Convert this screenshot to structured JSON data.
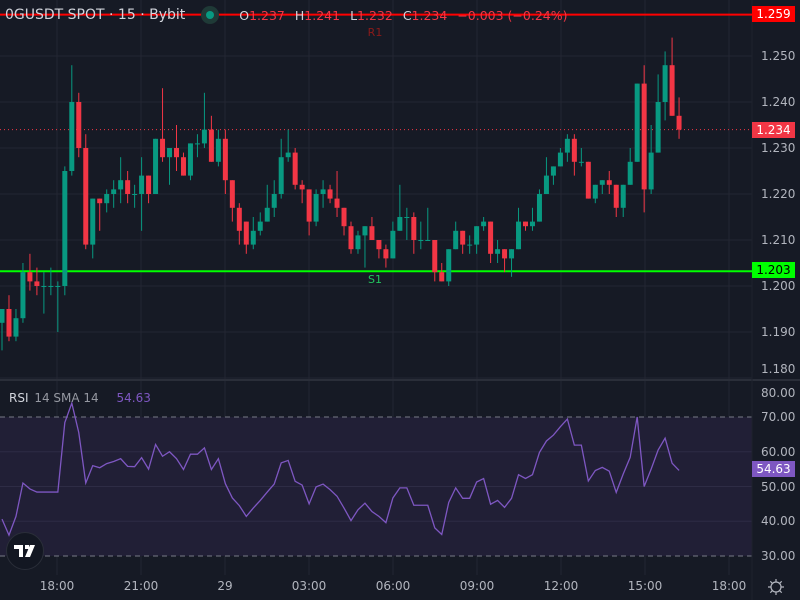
{
  "header": {
    "symbol_title": "0GUSDT SPOT · 15 · Bybit",
    "status_icon": "market-open-dot",
    "ohlc": {
      "o_key": "O",
      "o": "1.237",
      "h_key": "H",
      "h": "1.241",
      "l_key": "L",
      "l": "1.232",
      "c_key": "C",
      "c": "1.234",
      "change": "−0.003 (−0.24%)"
    }
  },
  "indicator": {
    "name": "RSI",
    "params": "14 SMA 14",
    "value": "54.63"
  },
  "levels": {
    "r1": {
      "label": "R1",
      "price": "1.259",
      "color": "#ff0000"
    },
    "s1": {
      "label": "S1",
      "price": "1.203",
      "color": "#00ff00"
    },
    "last": {
      "price": "1.234",
      "color": "#f23645"
    }
  },
  "colors": {
    "up": "#089981",
    "down": "#f23645",
    "rsi": "#7e57c2",
    "background": "#161a25"
  },
  "chart_data": [
    {
      "type": "candlestick",
      "title": "",
      "interval": "15",
      "ylim": [
        1.18,
        1.26
      ],
      "price_ticks": [
        "1.250",
        "1.240",
        "1.230",
        "1.220",
        "1.210",
        "1.200",
        "1.190",
        "1.180"
      ],
      "x_tick_labels": [
        "18:00",
        "21:00",
        "29",
        "03:00",
        "06:00",
        "09:00",
        "12:00",
        "15:00",
        "18:00"
      ],
      "grid": true,
      "candles_ohlc": [
        [
          1.192,
          1.195,
          1.186,
          1.195
        ],
        [
          1.195,
          1.198,
          1.188,
          1.189
        ],
        [
          1.189,
          1.195,
          1.188,
          1.193
        ],
        [
          1.193,
          1.205,
          1.192,
          1.203
        ],
        [
          1.203,
          1.207,
          1.199,
          1.201
        ],
        [
          1.201,
          1.204,
          1.198,
          1.2
        ],
        [
          1.2,
          1.203,
          1.194,
          1.2
        ],
        [
          1.2,
          1.204,
          1.198,
          1.2
        ],
        [
          1.2,
          1.201,
          1.19,
          1.2
        ],
        [
          1.2,
          1.226,
          1.198,
          1.225
        ],
        [
          1.225,
          1.248,
          1.224,
          1.24
        ],
        [
          1.24,
          1.242,
          1.228,
          1.23
        ],
        [
          1.23,
          1.233,
          1.208,
          1.209
        ],
        [
          1.209,
          1.219,
          1.206,
          1.219
        ],
        [
          1.219,
          1.219,
          1.212,
          1.218
        ],
        [
          1.218,
          1.221,
          1.216,
          1.22
        ],
        [
          1.22,
          1.223,
          1.217,
          1.221
        ],
        [
          1.221,
          1.228,
          1.218,
          1.223
        ],
        [
          1.223,
          1.225,
          1.218,
          1.22
        ],
        [
          1.22,
          1.222,
          1.217,
          1.22
        ],
        [
          1.22,
          1.228,
          1.212,
          1.224
        ],
        [
          1.224,
          1.224,
          1.218,
          1.22
        ],
        [
          1.22,
          1.232,
          1.22,
          1.232
        ],
        [
          1.232,
          1.243,
          1.227,
          1.228
        ],
        [
          1.228,
          1.23,
          1.222,
          1.23
        ],
        [
          1.23,
          1.235,
          1.225,
          1.228
        ],
        [
          1.228,
          1.229,
          1.224,
          1.224
        ],
        [
          1.224,
          1.231,
          1.223,
          1.231
        ],
        [
          1.231,
          1.233,
          1.228,
          1.231
        ],
        [
          1.231,
          1.242,
          1.23,
          1.234
        ],
        [
          1.234,
          1.237,
          1.227,
          1.227
        ],
        [
          1.227,
          1.234,
          1.226,
          1.232
        ],
        [
          1.232,
          1.234,
          1.22,
          1.223
        ],
        [
          1.223,
          1.223,
          1.214,
          1.217
        ],
        [
          1.217,
          1.218,
          1.209,
          1.212
        ],
        [
          1.214,
          1.214,
          1.207,
          1.209
        ],
        [
          1.209,
          1.215,
          1.208,
          1.212
        ],
        [
          1.212,
          1.216,
          1.211,
          1.214
        ],
        [
          1.214,
          1.222,
          1.214,
          1.217
        ],
        [
          1.217,
          1.223,
          1.215,
          1.22
        ],
        [
          1.22,
          1.232,
          1.219,
          1.228
        ],
        [
          1.228,
          1.234,
          1.227,
          1.229
        ],
        [
          1.229,
          1.23,
          1.221,
          1.222
        ],
        [
          1.222,
          1.223,
          1.218,
          1.221
        ],
        [
          1.221,
          1.221,
          1.211,
          1.214
        ],
        [
          1.214,
          1.221,
          1.213,
          1.22
        ],
        [
          1.22,
          1.223,
          1.217,
          1.221
        ],
        [
          1.221,
          1.222,
          1.218,
          1.219
        ],
        [
          1.219,
          1.225,
          1.215,
          1.217
        ],
        [
          1.217,
          1.217,
          1.211,
          1.213
        ],
        [
          1.213,
          1.214,
          1.207,
          1.208
        ],
        [
          1.208,
          1.212,
          1.207,
          1.211
        ],
        [
          1.211,
          1.213,
          1.204,
          1.213
        ],
        [
          1.213,
          1.215,
          1.21,
          1.21
        ],
        [
          1.21,
          1.21,
          1.206,
          1.208
        ],
        [
          1.208,
          1.209,
          1.204,
          1.206
        ],
        [
          1.206,
          1.214,
          1.206,
          1.212
        ],
        [
          1.212,
          1.222,
          1.212,
          1.215
        ],
        [
          1.215,
          1.217,
          1.21,
          1.215
        ],
        [
          1.215,
          1.216,
          1.207,
          1.21
        ],
        [
          1.21,
          1.214,
          1.208,
          1.21
        ],
        [
          1.21,
          1.217,
          1.21,
          1.21
        ],
        [
          1.21,
          1.21,
          1.201,
          1.203
        ],
        [
          1.203,
          1.205,
          1.201,
          1.201
        ],
        [
          1.201,
          1.208,
          1.2,
          1.208
        ],
        [
          1.208,
          1.214,
          1.208,
          1.212
        ],
        [
          1.212,
          1.212,
          1.207,
          1.209
        ],
        [
          1.209,
          1.211,
          1.207,
          1.209
        ],
        [
          1.209,
          1.213,
          1.207,
          1.213
        ],
        [
          1.213,
          1.215,
          1.212,
          1.214
        ],
        [
          1.214,
          1.214,
          1.205,
          1.207
        ],
        [
          1.207,
          1.21,
          1.205,
          1.208
        ],
        [
          1.208,
          1.208,
          1.203,
          1.206
        ],
        [
          1.206,
          1.208,
          1.202,
          1.208
        ],
        [
          1.208,
          1.217,
          1.208,
          1.214
        ],
        [
          1.214,
          1.214,
          1.212,
          1.213
        ],
        [
          1.213,
          1.217,
          1.212,
          1.214
        ],
        [
          1.214,
          1.221,
          1.214,
          1.22
        ],
        [
          1.22,
          1.228,
          1.22,
          1.224
        ],
        [
          1.224,
          1.226,
          1.222,
          1.226
        ],
        [
          1.226,
          1.23,
          1.226,
          1.229
        ],
        [
          1.229,
          1.233,
          1.227,
          1.232
        ],
        [
          1.232,
          1.233,
          1.224,
          1.227
        ],
        [
          1.227,
          1.23,
          1.226,
          1.227
        ],
        [
          1.227,
          1.227,
          1.219,
          1.219
        ],
        [
          1.219,
          1.222,
          1.218,
          1.222
        ],
        [
          1.222,
          1.223,
          1.22,
          1.223
        ],
        [
          1.223,
          1.225,
          1.22,
          1.222
        ],
        [
          1.222,
          1.222,
          1.215,
          1.217
        ],
        [
          1.217,
          1.222,
          1.215,
          1.222
        ],
        [
          1.222,
          1.23,
          1.222,
          1.227
        ],
        [
          1.227,
          1.244,
          1.227,
          1.244
        ],
        [
          1.244,
          1.248,
          1.216,
          1.221
        ],
        [
          1.221,
          1.235,
          1.22,
          1.229
        ],
        [
          1.229,
          1.246,
          1.229,
          1.24
        ],
        [
          1.24,
          1.251,
          1.236,
          1.248
        ],
        [
          1.248,
          1.254,
          1.237,
          1.237
        ],
        [
          1.237,
          1.241,
          1.232,
          1.234
        ]
      ]
    },
    {
      "type": "line",
      "title": "RSI 14 SMA 14",
      "ylim": [
        25,
        80
      ],
      "y_ticks": [
        "80.00",
        "70.00",
        "60.00",
        "50.00",
        "40.00",
        "30.00"
      ],
      "bands": [
        30,
        70
      ],
      "series": [
        {
          "values": [
            40.6,
            36,
            41.4,
            51,
            49.3,
            48.4,
            48.4,
            48.4,
            48.4,
            68.4,
            74,
            65.5,
            51,
            56,
            55.4,
            56.6,
            57.2,
            58,
            55.8,
            55.7,
            58.3,
            55,
            62.1,
            58.7,
            60,
            58,
            54.9,
            59.3,
            59.3,
            61.1,
            54.9,
            58,
            50.8,
            46.7,
            44.5,
            41.4,
            43.8,
            46,
            48.4,
            50.7,
            56.8,
            57.5,
            51.5,
            50.4,
            45,
            49.9,
            50.7,
            49.1,
            47.2,
            43.8,
            40.2,
            43.3,
            45.2,
            42.8,
            41.4,
            39.6,
            46.7,
            49.6,
            49.6,
            44.6,
            44.6,
            44.6,
            38.1,
            36.2,
            45.4,
            49.6,
            46.6,
            46.6,
            51.3,
            52.3,
            44.9,
            46,
            44,
            46.6,
            53.4,
            52.3,
            53.4,
            59.8,
            63.1,
            64.8,
            67.2,
            69.4,
            61.9,
            61.9,
            51.6,
            54.6,
            55.5,
            54.4,
            48.3,
            53.6,
            58.4,
            70,
            50,
            55,
            60.5,
            63.9,
            56.7,
            54.63
          ]
        }
      ]
    }
  ]
}
